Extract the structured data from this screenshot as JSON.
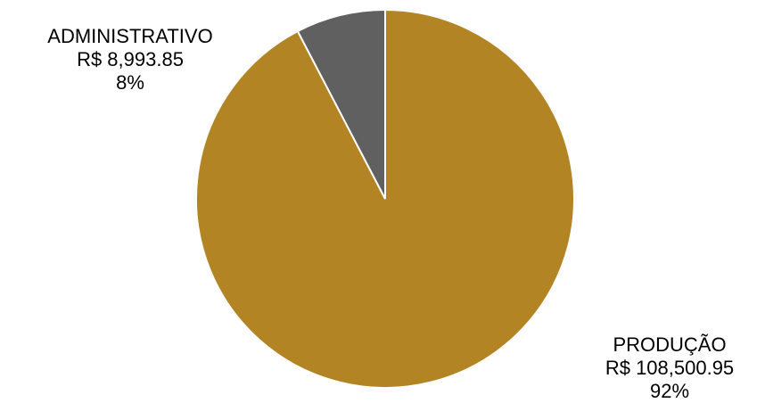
{
  "chart_data": {
    "type": "pie",
    "title": "",
    "slices": [
      {
        "label": "ADMINISTRATIVO",
        "value": 8993.85,
        "value_text": "R$ 8,993.85",
        "percent_text": "8%",
        "color": "#606060"
      },
      {
        "label": "PRODUÇÃO",
        "value": 108500.95,
        "value_text": "R$ 108,500.95",
        "percent_text": "92%",
        "color": "#B38424"
      }
    ],
    "start_angle_deg": 0,
    "direction": "clockwise",
    "legend": "none",
    "slice_border_color": "#FFFFFF"
  }
}
